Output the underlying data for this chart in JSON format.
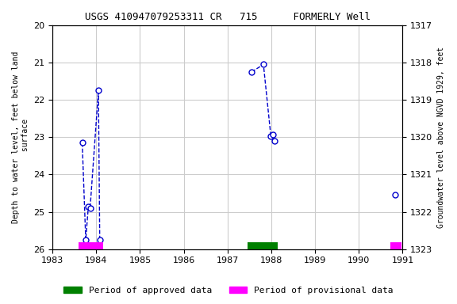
{
  "title": "USGS 410947079253311 CR   715      FORMERLY Well",
  "ylabel_left": "Depth to water level, feet below land\n surface",
  "ylabel_right": "Groundwater level above NGVD 1929, feet",
  "xlim": [
    1983,
    1991
  ],
  "ylim_left": [
    20.0,
    26.0
  ],
  "ylim_right": [
    1317.0,
    1323.0
  ],
  "yticks_left": [
    20.0,
    21.0,
    22.0,
    23.0,
    24.0,
    25.0,
    26.0
  ],
  "yticks_right": [
    1317.0,
    1318.0,
    1319.0,
    1320.0,
    1321.0,
    1322.0,
    1323.0
  ],
  "xticks": [
    1983,
    1984,
    1985,
    1986,
    1987,
    1988,
    1989,
    1990,
    1991
  ],
  "segments": [
    {
      "x": [
        1983.68,
        1983.76,
        1983.82,
        1983.86,
        1984.05,
        1984.08
      ],
      "y": [
        23.15,
        25.75,
        24.85,
        24.9,
        21.75,
        25.75
      ]
    },
    {
      "x": [
        1987.55,
        1987.82,
        1987.99,
        1988.04,
        1988.08
      ],
      "y": [
        21.25,
        21.05,
        22.98,
        22.93,
        23.1
      ]
    },
    {
      "x": [
        1990.82
      ],
      "y": [
        24.55
      ]
    }
  ],
  "line_color": "#0000cc",
  "marker_color": "#0000cc",
  "marker_face": "#ffffff",
  "line_style": "--",
  "marker_style": "o",
  "marker_size": 5,
  "period_bars": [
    {
      "x_start": 1983.6,
      "x_end": 1984.15,
      "color": "#ff00ff"
    },
    {
      "x_start": 1987.45,
      "x_end": 1988.15,
      "color": "#008000"
    },
    {
      "x_start": 1990.72,
      "x_end": 1990.97,
      "color": "#ff00ff"
    }
  ],
  "bar_y_top": 26.0,
  "bar_height": 0.18,
  "bg_color": "#ffffff",
  "grid_color": "#cccccc",
  "font_family": "monospace",
  "title_fontsize": 9,
  "label_fontsize": 7,
  "tick_fontsize": 8
}
